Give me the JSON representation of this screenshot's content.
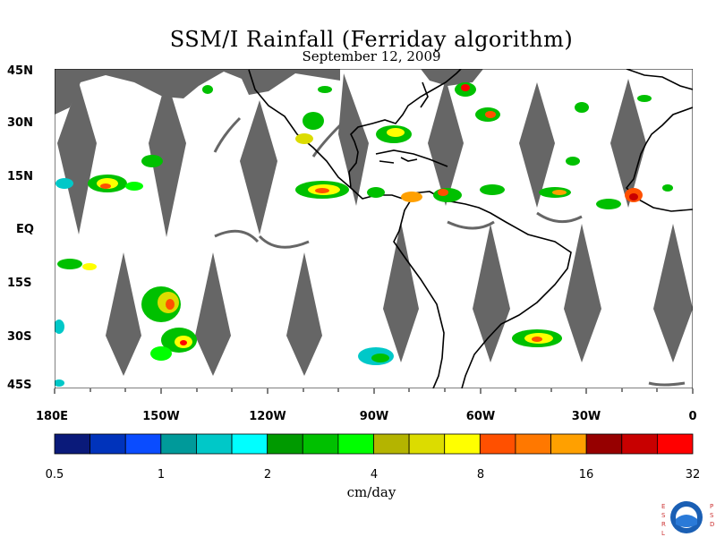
{
  "title": "SSM/I Rainfall (Ferriday algorithm)",
  "subtitle": "September 12, 2009",
  "lat_labels": [
    "45N",
    "30N",
    "15N",
    "EQ",
    "15S",
    "30S",
    "45S"
  ],
  "lon_labels": [
    "180E",
    "150W",
    "120W",
    "90W",
    "60W",
    "30W",
    "0"
  ],
  "colorbar": {
    "colors": [
      "#0a1a7a",
      "#0033bb",
      "#0a4cff",
      "#009a9a",
      "#00c8c8",
      "#00ffff",
      "#009a00",
      "#00c000",
      "#00ff00",
      "#b4b400",
      "#dcdc00",
      "#ffff00",
      "#ff5000",
      "#ff7800",
      "#ffa000",
      "#960000",
      "#c80000",
      "#ff0000"
    ],
    "ticks": [
      "0.5",
      "1",
      "2",
      "4",
      "8",
      "16",
      "32"
    ],
    "unit": "cm/day"
  },
  "logo": {
    "name": "NOAA",
    "left_text": "ESRL",
    "right_text": "PSD"
  },
  "colors": {
    "swath_gap": "#666666",
    "coast": "#000000"
  }
}
